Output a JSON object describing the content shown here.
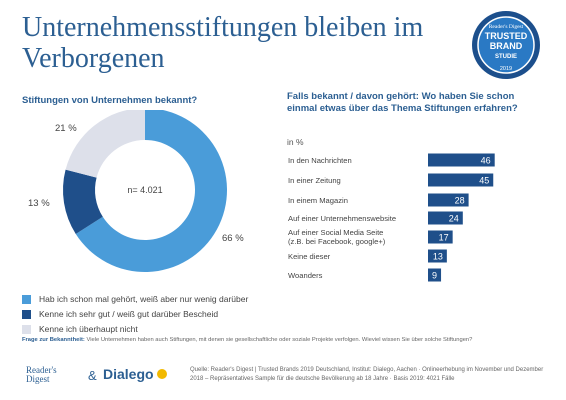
{
  "header": {
    "title": "Unternehmensstiftungen bleiben im Verborgenen",
    "badge_line1": "Reader's Digest",
    "badge_line2": "TRUSTED",
    "badge_line3": "BRAND",
    "badge_line4": "STUDIE",
    "badge_year": "2019"
  },
  "colors": {
    "title_blue": "#2c5f92",
    "light_blue": "#4a9cd9",
    "dark_blue": "#1f4f8a",
    "grey": "#dde0ea"
  },
  "chart_data": [
    {
      "type": "pie",
      "title": "Stiftungen von Unternehmen bekannt?",
      "center_label": "n= 4.021",
      "slices": [
        {
          "label": "Hab ich schon mal gehört, weiß aber nur wenig darüber",
          "value": 66,
          "value_label": "66 %",
          "color": "#4a9cd9"
        },
        {
          "label": "Kenne ich sehr gut / weiß gut darüber Bescheid",
          "value": 13,
          "value_label": "13 %",
          "color": "#1f4f8a"
        },
        {
          "label": "Kenne ich überhaupt nicht",
          "value": 21,
          "value_label": "21 %",
          "color": "#dde0ea"
        }
      ]
    },
    {
      "type": "bar",
      "title": "Falls bekannt / davon gehört: Wo haben Sie schon einmal etwas über das Thema Stiftungen erfahren?",
      "unit": "in %",
      "categories": [
        [
          "In den Nachrichten"
        ],
        [
          "In einer Zeitung"
        ],
        [
          "In einem Magazin"
        ],
        [
          "Auf einer Unternehmenswebsite"
        ],
        [
          "Auf einer Social Media Seite",
          "(z.B. bei Facebook, google+)"
        ],
        [
          "Keine dieser"
        ],
        [
          "Woanders"
        ]
      ],
      "values": [
        46,
        45,
        28,
        24,
        17,
        13,
        9
      ],
      "color": "#1f4f8a"
    }
  ],
  "footer": {
    "question_label": "Frage zur Bekanntheit:",
    "question_text": "Viele Unternehmen haben auch Stiftungen, mit denen sie gesellschaftliche oder soziale Projekte verfolgen. Wieviel wissen Sie über solche Stiftungen?",
    "logo_rd_line1": "Reader's",
    "logo_rd_line2": "Digest",
    "logo_amp": "&",
    "logo_dialego": "Dialego",
    "source": "Quelle: Reader's Digest | Trusted Brands 2019 Deutschland, Institut: Dialego, Aachen · Onlineerhebung im November und Dezember 2018 – Repräsentatives Sample für die deutsche Bevölkerung ab 18 Jahre · Basis 2019: 4021 Fälle"
  }
}
